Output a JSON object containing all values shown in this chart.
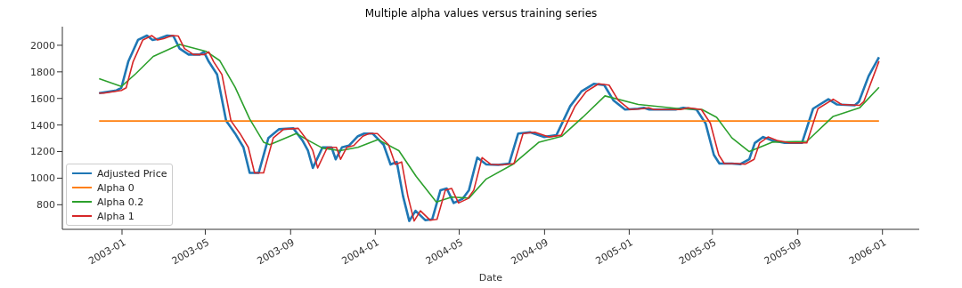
{
  "chart_data": {
    "type": "line",
    "title": "Multiple alpha values versus training series",
    "xlabel": "Date",
    "xlim": [
      "2002-10-07",
      "2006-02-23"
    ],
    "xticks": [
      "2003-01",
      "2003-05",
      "2003-09",
      "2004-01",
      "2004-05",
      "2004-09",
      "2005-01",
      "2005-05",
      "2005-09",
      "2006-01"
    ],
    "ylim": [
      615,
      2140
    ],
    "yticks": [
      800,
      1000,
      1200,
      1400,
      1600,
      1800,
      2000
    ],
    "grid": false,
    "legend": "bottom left",
    "series": [
      {
        "name": "Adjusted Price",
        "color": "#1f77b4",
        "x": [
          "2002-11-29",
          "2002-12-24",
          "2002-12-31",
          "2003-01-10",
          "2003-01-24",
          "2003-02-06",
          "2003-02-14",
          "2003-02-23",
          "2003-03-07",
          "2003-03-16",
          "2003-03-25",
          "2003-04-07",
          "2003-04-23",
          "2003-04-29",
          "2003-05-06",
          "2003-05-18",
          "2003-05-31",
          "2003-06-13",
          "2003-06-25",
          "2003-07-04",
          "2003-07-17",
          "2003-07-31",
          "2003-08-15",
          "2003-09-05",
          "2003-09-18",
          "2003-09-26",
          "2003-10-03",
          "2003-10-17",
          "2003-10-30",
          "2003-11-05",
          "2003-11-14",
          "2003-11-24",
          "2003-12-07",
          "2003-12-16",
          "2003-12-28",
          "2004-01-13",
          "2004-01-23",
          "2004-02-01",
          "2004-02-10",
          "2004-02-19",
          "2004-02-28",
          "2004-03-13",
          "2004-03-23",
          "2004-04-04",
          "2004-04-13",
          "2004-04-23",
          "2004-05-06",
          "2004-05-15",
          "2004-05-27",
          "2004-06-09",
          "2004-06-26",
          "2004-07-12",
          "2004-07-25",
          "2004-08-11",
          "2004-08-31",
          "2004-09-18",
          "2004-10-08",
          "2004-10-24",
          "2004-11-11",
          "2004-11-26",
          "2004-12-09",
          "2004-12-26",
          "2005-01-14",
          "2005-01-22",
          "2005-01-30",
          "2005-03-09",
          "2005-03-20",
          "2005-04-08",
          "2005-04-21",
          "2005-05-03",
          "2005-05-11",
          "2005-05-29",
          "2005-06-10",
          "2005-06-23",
          "2005-07-01",
          "2005-07-13",
          "2005-07-26",
          "2005-08-13",
          "2005-09-07",
          "2005-09-23",
          "2005-10-15",
          "2005-10-27",
          "2005-11-22",
          "2005-11-28",
          "2005-12-12",
          "2005-12-27"
        ],
        "values": [
          1640,
          1660,
          1680,
          1877,
          2040,
          2073,
          2040,
          2050,
          2073,
          2070,
          1975,
          1930,
          1930,
          1950,
          1877,
          1780,
          1432,
          1336,
          1232,
          1040,
          1040,
          1303,
          1368,
          1375,
          1284,
          1207,
          1077,
          1232,
          1232,
          1142,
          1232,
          1245,
          1316,
          1336,
          1336,
          1252,
          1103,
          1122,
          865,
          678,
          755,
          684,
          690,
          910,
          923,
          813,
          845,
          910,
          1155,
          1103,
          1100,
          1110,
          1336,
          1346,
          1310,
          1323,
          1542,
          1652,
          1710,
          1700,
          1587,
          1516,
          1523,
          1530,
          1516,
          1516,
          1530,
          1516,
          1413,
          1175,
          1110,
          1110,
          1105,
          1142,
          1265,
          1310,
          1284,
          1265,
          1265,
          1523,
          1594,
          1555,
          1548,
          1575,
          1768,
          1910
        ]
      },
      {
        "name": "Alpha 0",
        "color": "#ff7f0e",
        "x": [
          "2002-11-29",
          "2005-12-27"
        ],
        "values": [
          1430,
          1430
        ]
      },
      {
        "name": "Alpha 0.2",
        "color": "#2ca02c",
        "x": [
          "2002-11-29",
          "2002-12-31",
          "2003-01-21",
          "2003-02-15",
          "2003-03-25",
          "2003-05-02",
          "2003-05-22",
          "2003-06-13",
          "2003-07-04",
          "2003-07-24",
          "2003-08-02",
          "2003-09-09",
          "2003-10-01",
          "2003-10-17",
          "2003-11-11",
          "2003-12-07",
          "2004-01-05",
          "2004-02-04",
          "2004-02-29",
          "2004-03-29",
          "2004-04-20",
          "2004-05-15",
          "2004-06-09",
          "2004-07-17",
          "2004-08-24",
          "2004-09-26",
          "2004-10-26",
          "2004-11-27",
          "2005-01-14",
          "2005-03-14",
          "2005-04-16",
          "2005-05-07",
          "2005-05-29",
          "2005-06-23",
          "2005-07-26",
          "2005-09-14",
          "2005-10-22",
          "2005-11-29",
          "2005-12-27"
        ],
        "values": [
          1748,
          1690,
          1787,
          1916,
          2006,
          1955,
          1884,
          1684,
          1445,
          1271,
          1252,
          1336,
          1271,
          1226,
          1207,
          1232,
          1290,
          1207,
          1013,
          820,
          858,
          850,
          994,
          1103,
          1271,
          1316,
          1458,
          1619,
          1555,
          1523,
          1516,
          1458,
          1303,
          1200,
          1271,
          1277,
          1465,
          1529,
          1684
        ]
      },
      {
        "name": "Alpha 1",
        "color": "#d62728",
        "x": [
          "2002-11-29",
          "2002-12-06",
          "2002-12-31",
          "2003-01-07",
          "2003-01-17",
          "2003-01-31",
          "2003-02-13",
          "2003-02-21",
          "2003-03-02",
          "2003-03-14",
          "2003-03-23",
          "2003-04-01",
          "2003-04-14",
          "2003-04-30",
          "2003-05-06",
          "2003-05-13",
          "2003-05-25",
          "2003-06-07",
          "2003-06-20",
          "2003-07-02",
          "2003-07-11",
          "2003-07-24",
          "2003-08-07",
          "2003-08-22",
          "2003-09-12",
          "2003-09-25",
          "2003-10-03",
          "2003-10-10",
          "2003-10-24",
          "2003-11-06",
          "2003-11-12",
          "2003-11-21",
          "2003-12-01",
          "2003-12-14",
          "2003-12-23",
          "2004-01-04",
          "2004-01-20",
          "2004-01-30",
          "2004-02-08",
          "2004-02-17",
          "2004-02-26",
          "2004-03-06",
          "2004-03-20",
          "2004-03-30",
          "2004-04-11",
          "2004-04-20",
          "2004-04-30",
          "2004-05-13",
          "2004-05-22",
          "2004-06-03",
          "2004-06-16",
          "2004-07-03",
          "2004-07-19",
          "2004-08-01",
          "2004-08-18",
          "2004-09-07",
          "2004-09-25",
          "2004-10-15",
          "2004-10-31",
          "2004-11-18",
          "2004-12-03",
          "2004-12-16",
          "2005-01-02",
          "2005-01-21",
          "2005-01-29",
          "2005-02-06",
          "2005-03-16",
          "2005-03-27",
          "2005-04-15",
          "2005-04-28",
          "2005-05-10",
          "2005-05-18",
          "2005-06-05",
          "2005-06-17",
          "2005-06-30",
          "2005-07-08",
          "2005-07-20",
          "2005-08-02",
          "2005-08-20",
          "2005-09-14",
          "2005-09-30",
          "2005-10-22",
          "2005-11-03",
          "2005-11-29",
          "2005-12-05",
          "2005-12-19",
          "2005-12-27"
        ],
        "values": [
          1640,
          1640,
          1660,
          1680,
          1877,
          2040,
          2073,
          2040,
          2050,
          2073,
          2070,
          1975,
          1930,
          1930,
          1950,
          1877,
          1780,
          1432,
          1336,
          1232,
          1040,
          1040,
          1303,
          1368,
          1375,
          1284,
          1207,
          1077,
          1232,
          1232,
          1142,
          1232,
          1245,
          1316,
          1336,
          1336,
          1252,
          1103,
          1122,
          865,
          678,
          755,
          684,
          690,
          910,
          923,
          813,
          845,
          910,
          1155,
          1103,
          1100,
          1110,
          1336,
          1346,
          1310,
          1323,
          1542,
          1652,
          1710,
          1700,
          1587,
          1516,
          1523,
          1530,
          1516,
          1516,
          1530,
          1516,
          1413,
          1175,
          1110,
          1110,
          1105,
          1142,
          1265,
          1310,
          1284,
          1265,
          1265,
          1523,
          1594,
          1555,
          1548,
          1575,
          1768,
          1880
        ]
      }
    ]
  }
}
